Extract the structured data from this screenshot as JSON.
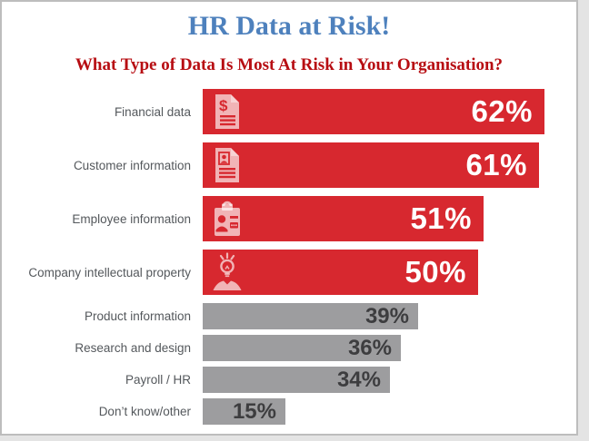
{
  "page": {
    "title": "HR Data at Risk!",
    "subtitle": "What Type of Data Is Most At Risk in Your Organisation?",
    "title_color": "#4e81bd",
    "subtitle_color": "#b70d12",
    "label_color": "#54585c"
  },
  "chart_data": {
    "type": "bar",
    "orientation": "horizontal",
    "title": "HR Data at Risk!",
    "subtitle": "What Type of Data Is Most At Risk in Your Organisation?",
    "unit": "%",
    "xlim": [
      0,
      62
    ],
    "grid": false,
    "legend": false,
    "highlight_color": "#d7282f",
    "muted_color": "#9d9d9f",
    "highlight_value_color": "#ffffff",
    "muted_value_color": "#3d3d3f",
    "categories": [
      "Financial data",
      "Customer information",
      "Employee information",
      "Company intellectual property",
      "Product information",
      "Research and design",
      "Payroll / HR",
      "Don’t know/other"
    ],
    "values": [
      62,
      61,
      51,
      50,
      39,
      36,
      34,
      15
    ],
    "rows": [
      {
        "label": "Financial data",
        "value": 62,
        "display": "62%",
        "style": "highlight",
        "icon": "dollar-document-icon"
      },
      {
        "label": "Customer information",
        "value": 61,
        "display": "61%",
        "style": "highlight",
        "icon": "customer-document-icon"
      },
      {
        "label": "Employee information",
        "value": 51,
        "display": "51%",
        "style": "highlight",
        "icon": "employee-badge-icon"
      },
      {
        "label": "Company intellectual property",
        "value": 50,
        "display": "50%",
        "style": "highlight",
        "icon": "idea-person-icon"
      },
      {
        "label": "Product information",
        "value": 39,
        "display": "39%",
        "style": "muted",
        "icon": null
      },
      {
        "label": "Research and design",
        "value": 36,
        "display": "36%",
        "style": "muted",
        "icon": null
      },
      {
        "label": "Payroll / HR",
        "value": 34,
        "display": "34%",
        "style": "muted",
        "icon": null
      },
      {
        "label": "Don’t know/other",
        "value": 15,
        "display": "15%",
        "style": "muted",
        "icon": null
      }
    ]
  }
}
